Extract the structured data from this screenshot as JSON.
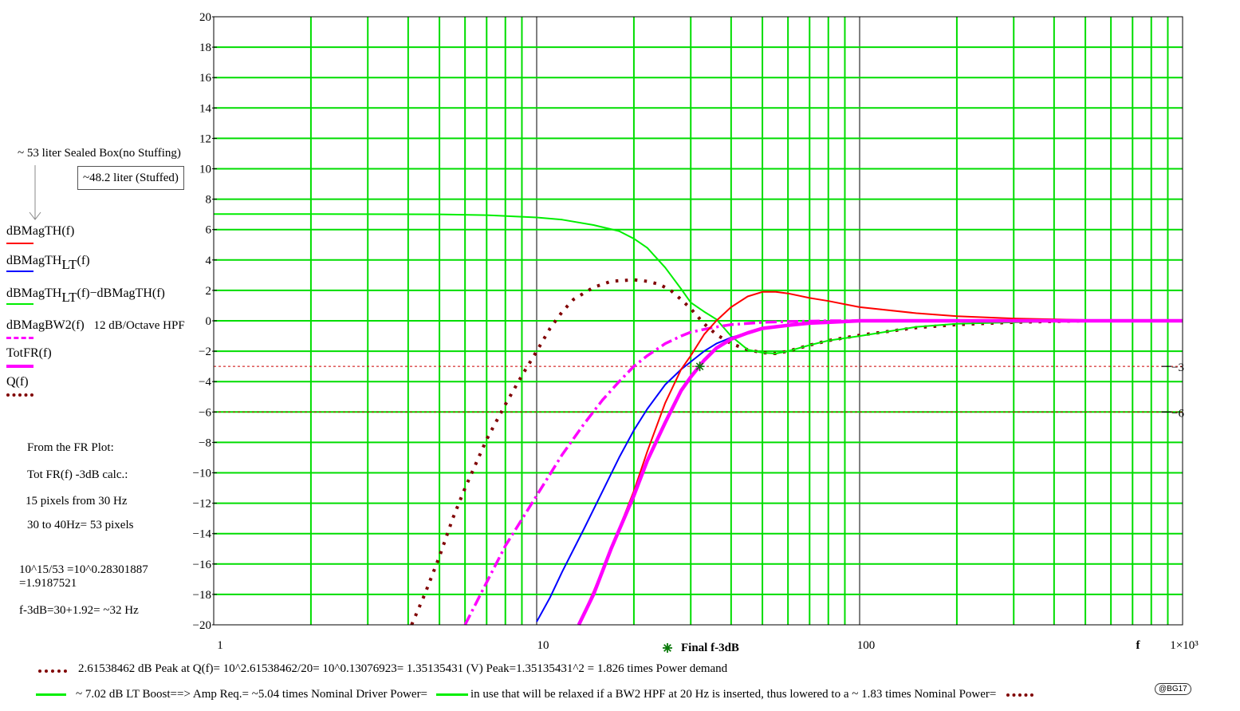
{
  "chart_data": {
    "type": "line",
    "x_scale": "log",
    "xlim": [
      1,
      1000
    ],
    "ylim": [
      -20,
      20
    ],
    "grid": true,
    "xtick_labels": [
      "1",
      "10",
      "100",
      "1×10³"
    ],
    "ytick_labels": [
      "20",
      "18",
      "16",
      "14",
      "12",
      "10",
      "8",
      "6",
      "4",
      "2",
      "0",
      "−2",
      "−4",
      "−6",
      "−8",
      "−10",
      "−12",
      "−14",
      "−16",
      "−18",
      "−20"
    ],
    "x_axis_var": "f",
    "marker_label": "Final f-3dB",
    "marker_point": [
      32,
      -3
    ],
    "hlines": [
      {
        "y": -3,
        "label": "−3"
      },
      {
        "y": -6,
        "label": "−6"
      }
    ],
    "series": [
      {
        "name": "dBMagTH(f)",
        "color": "#ff0000",
        "style": "solid",
        "x": [
          13.5,
          15,
          17,
          20,
          22,
          25,
          28,
          30,
          33,
          36,
          40,
          45,
          50,
          55,
          60,
          70,
          80,
          100,
          150,
          200,
          300,
          500,
          1000
        ],
        "y": [
          -20,
          -17.8,
          -15,
          -11.2,
          -8.6,
          -5.4,
          -3.2,
          -2.3,
          -0.9,
          0,
          0.9,
          1.6,
          1.9,
          1.9,
          1.8,
          1.5,
          1.3,
          0.9,
          0.5,
          0.3,
          0.15,
          0.05,
          0
        ]
      },
      {
        "name": "dBMagTH_LT(f)",
        "color": "#0000ff",
        "style": "solid",
        "x": [
          10,
          11,
          12,
          14,
          16,
          18,
          20,
          22,
          25,
          28,
          30,
          33,
          36,
          40,
          45,
          50,
          60,
          70,
          80,
          100,
          150,
          200,
          300,
          1000
        ],
        "y": [
          -19.8,
          -18.2,
          -16.5,
          -13.7,
          -11.2,
          -9,
          -7.2,
          -5.8,
          -4.2,
          -3.2,
          -2.7,
          -2,
          -1.5,
          -1.1,
          -0.8,
          -0.55,
          -0.3,
          -0.15,
          -0.1,
          0,
          0,
          0,
          0,
          0
        ]
      },
      {
        "name": "dBMagTH_LT(f)−dBMagTH(f)",
        "color": "#00ee00",
        "style": "solid",
        "x": [
          1,
          2,
          5,
          7,
          10,
          12,
          15,
          18,
          20,
          22,
          25,
          28,
          30,
          33,
          36,
          40,
          45,
          50,
          55,
          60,
          70,
          80,
          100,
          150,
          200,
          300,
          500,
          1000
        ],
        "y": [
          7.02,
          7.02,
          7,
          6.95,
          6.8,
          6.65,
          6.3,
          5.9,
          5.4,
          4.8,
          3.5,
          2.1,
          1.2,
          0.6,
          0.1,
          -1,
          -1.9,
          -2.1,
          -2.15,
          -2,
          -1.6,
          -1.3,
          -1,
          -0.4,
          -0.2,
          -0.1,
          0,
          0
        ]
      },
      {
        "name": "dBMagBW2(f)",
        "color": "#ff00ff",
        "style": "dashdot",
        "x": [
          6,
          7,
          8,
          10,
          12,
          14,
          16,
          18,
          20,
          22,
          25,
          28,
          30,
          35,
          40,
          50,
          60,
          80,
          100,
          200,
          1000
        ],
        "y": [
          -20,
          -17.2,
          -14.8,
          -11.5,
          -8.8,
          -6.8,
          -5.2,
          -4,
          -3,
          -2.3,
          -1.5,
          -1,
          -0.75,
          -0.45,
          -0.25,
          -0.1,
          -0.05,
          0,
          0,
          0,
          0
        ]
      },
      {
        "name": "TotFR(f)",
        "color": "#ff00ff",
        "style": "thick",
        "x": [
          13.5,
          15,
          17,
          20,
          22,
          25,
          28,
          30,
          33,
          36,
          40,
          45,
          50,
          60,
          70,
          80,
          100,
          150,
          200,
          1000
        ],
        "y": [
          -20,
          -18,
          -15,
          -11.5,
          -9.2,
          -6.7,
          -4.6,
          -3.7,
          -2.6,
          -1.8,
          -1.2,
          -0.8,
          -0.5,
          -0.3,
          -0.15,
          -0.1,
          0,
          0,
          0,
          0
        ]
      },
      {
        "name": "Q(f)",
        "color": "#800000",
        "style": "dotted",
        "x": [
          4.1,
          4.5,
          5,
          5.5,
          6,
          7,
          8,
          9,
          10,
          11,
          12,
          13,
          15,
          17,
          20,
          22,
          24,
          26,
          28,
          30,
          33,
          36,
          40,
          45,
          50,
          55,
          60,
          70,
          80,
          100,
          150,
          200,
          300,
          500,
          1000
        ],
        "y": [
          -20,
          -18,
          -15.5,
          -13,
          -11,
          -7.8,
          -5.5,
          -3.6,
          -2,
          -0.5,
          0.6,
          1.4,
          2.2,
          2.6,
          2.7,
          2.6,
          2.4,
          2,
          1.4,
          0.8,
          -0.2,
          -0.9,
          -1.5,
          -1.9,
          -2.1,
          -2.15,
          -2,
          -1.6,
          -1.3,
          -0.95,
          -0.45,
          -0.25,
          -0.1,
          0,
          0
        ]
      }
    ]
  },
  "legend": {
    "items": [
      {
        "label_main": "dBMagTH(f)",
        "label_sub": "",
        "label_tail": "",
        "note": ""
      },
      {
        "label_main": "dBMagTH",
        "label_sub": "LT",
        "label_tail": "(f)",
        "note": ""
      },
      {
        "label_main": "dBMagTH",
        "label_sub": "LT",
        "label_tail": "(f)−dBMagTH(f)",
        "note": ""
      },
      {
        "label_main": "dBMagBW2(f)",
        "label_sub": "",
        "label_tail": "",
        "note": "12 dB/Octave HPF"
      },
      {
        "label_main": "TotFR(f)",
        "label_sub": "",
        "label_tail": "",
        "note": ""
      },
      {
        "label_main": "Q(f)",
        "label_sub": "",
        "label_tail": "",
        "note": ""
      }
    ]
  },
  "annotations": {
    "box_no_stuffing": "~ 53 liter Sealed Box(no Stuffing)",
    "box_stuffed": "~48.2 liter (Stuffed)",
    "notes": [
      "From the FR Plot:",
      "Tot FR(f) -3dB calc.:",
      "15 pixels from 30 Hz",
      "30 to 40Hz= 53 pixels",
      "10^15/53 =10^0.28301887",
      "=1.9187521",
      "f-3dB=30+1.92= ~32 Hz"
    ],
    "bottom_line1": "2.61538462 dB Peak at Q(f)= 10^2.61538462/20= 10^0.13076923= 1.35135431 (V) Peak=1.35135431^2 = 1.826 times Power demand",
    "bottom_line2a": "~ 7.02 dB LT Boost==> Amp Req.= ~5.04 times Nominal Driver Power=",
    "bottom_line2b": "in use that will be relaxed if a BW2 HPF at 20 Hz is inserted, thus lowered to a ~ 1.83 times Nominal Power=",
    "signature": "@BG17"
  },
  "colors": {
    "grid_major": "#00dd00",
    "grid_decade": "#000000",
    "red": "#ff0000",
    "blue": "#0000ff",
    "green": "#00ee00",
    "magenta": "#ff00ff",
    "brown": "#800000",
    "hline": "#cc0000"
  }
}
